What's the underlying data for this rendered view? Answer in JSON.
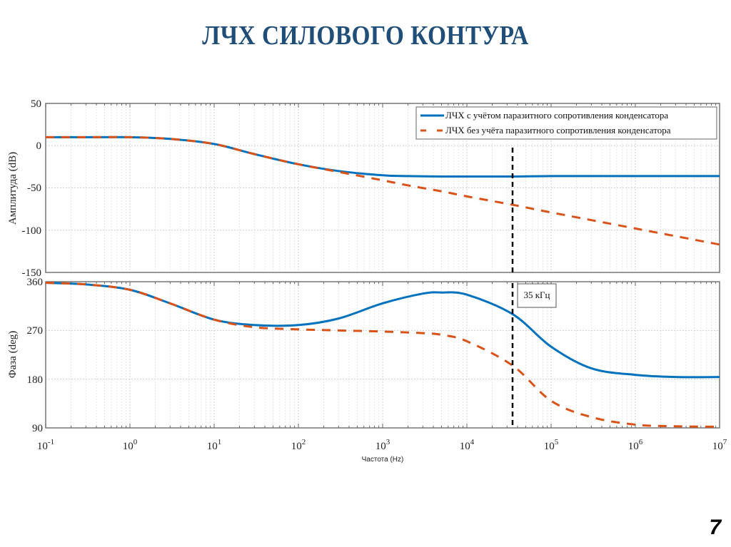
{
  "slide": {
    "title": "ЛЧХ СИЛОВОГО КОНТУРА",
    "page_number": "7",
    "title_color": "#1f4e79"
  },
  "chart_data": [
    {
      "type": "line",
      "panel": "magnitude",
      "title": "",
      "xlabel": "",
      "ylabel": "Амплитуда (dB)",
      "xscale": "log",
      "xlim": [
        0.1,
        10000000
      ],
      "ylim": [
        -150,
        50
      ],
      "yticks": [
        "50",
        "0",
        "-50",
        "-100",
        "-150"
      ],
      "grid": true,
      "legend_position": "upper right",
      "x": [
        0.1,
        0.3,
        1,
        3,
        10,
        30,
        100,
        300,
        1000,
        2000,
        5000,
        10000,
        35000,
        100000,
        1000000,
        10000000
      ],
      "series": [
        {
          "name": "ЛЧХ с учётом паразитного сопротивления конденсатора",
          "color": "#0072bd",
          "style": "solid",
          "values": [
            10,
            10,
            10,
            8,
            2,
            -10,
            -22,
            -30,
            -35,
            -36,
            -36.5,
            -36.5,
            -36.5,
            -36,
            -36,
            -36
          ]
        },
        {
          "name": "ЛЧХ без учёта паразитного сопротивления конденсатора",
          "color": "#d95319",
          "style": "dashed",
          "values": [
            10,
            10,
            10,
            8,
            2,
            -10,
            -22,
            -31,
            -41,
            -47,
            -54,
            -60,
            -70,
            -79,
            -98,
            -117
          ]
        }
      ],
      "annotations": [
        {
          "type": "vline",
          "x": 35000,
          "style": "dashed",
          "color": "#000000"
        }
      ]
    },
    {
      "type": "line",
      "panel": "phase",
      "title": "",
      "xlabel": "Частота (Hz)",
      "ylabel": "Фаза (deg)",
      "xscale": "log",
      "xlim": [
        0.1,
        10000000
      ],
      "ylim": [
        90,
        360
      ],
      "xticks": [
        "10^-1",
        "10^0",
        "10^1",
        "10^2",
        "10^3",
        "10^4",
        "10^5",
        "10^6",
        "10^7"
      ],
      "yticks": [
        "360",
        "270",
        "180",
        "90"
      ],
      "grid": true,
      "x": [
        0.1,
        0.3,
        1,
        3,
        10,
        30,
        100,
        300,
        1000,
        3000,
        5000,
        10000,
        35000,
        100000,
        300000,
        1000000,
        3000000,
        10000000
      ],
      "series": [
        {
          "name": "ЛЧХ с учётом паразитного сопротивления конденсатора",
          "color": "#0072bd",
          "style": "solid",
          "values": [
            358,
            355,
            345,
            320,
            290,
            280,
            280,
            292,
            320,
            338,
            340,
            336,
            300,
            240,
            200,
            188,
            184,
            184
          ]
        },
        {
          "name": "ЛЧХ без учёта паразитного сопротивления конденсатора",
          "color": "#d95319",
          "style": "dashed",
          "values": [
            358,
            355,
            345,
            320,
            290,
            276,
            272,
            270,
            268,
            265,
            262,
            250,
            205,
            140,
            110,
            96,
            93,
            92
          ]
        }
      ],
      "annotations": [
        {
          "type": "vline",
          "x": 35000,
          "style": "dashed",
          "color": "#000000"
        },
        {
          "type": "textbox",
          "text": "35 кГц",
          "x": 40000,
          "y": 345
        }
      ]
    }
  ],
  "labels": {
    "top_ylabel": "Амплитуда (dB)",
    "bottom_ylabel": "Фаза (deg)",
    "xlabel": "Частота (Hz)",
    "legend_1": "ЛЧХ с учётом паразитного сопротивления конденсатора",
    "legend_2": "ЛЧХ без учёта паразитного сопротивления конденсатора",
    "annotation": "35 кГц",
    "top_yticks": [
      "50",
      "0",
      "-50",
      "-100",
      "-150"
    ],
    "bottom_yticks": [
      "360",
      "270",
      "180",
      "90"
    ],
    "xtick_mantissa": [
      "10",
      "10",
      "10",
      "10",
      "10",
      "10",
      "10",
      "10",
      "10"
    ],
    "xtick_exponents": [
      "-1",
      "0",
      "1",
      "2",
      "3",
      "4",
      "5",
      "6",
      "7"
    ]
  }
}
